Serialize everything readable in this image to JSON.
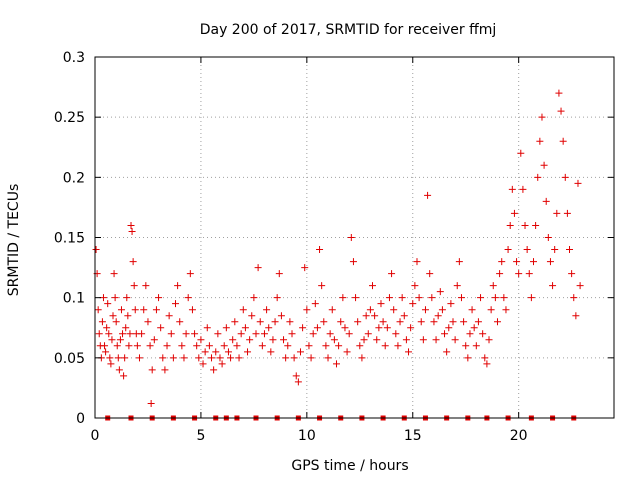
{
  "chart_data": {
    "type": "scatter",
    "title": "Day 200 of 2017, SRMTID for receiver ffmj",
    "xlabel": "GPS time / hours",
    "ylabel": "SRMTID / TECUs",
    "xlim": [
      0,
      24.5
    ],
    "ylim": [
      0,
      0.3
    ],
    "x_ticks": [
      0,
      5,
      10,
      15,
      20
    ],
    "x_tick_labels": [
      "0",
      "5",
      "10",
      "15",
      "20"
    ],
    "y_ticks": [
      0,
      0.05,
      0.1,
      0.15,
      0.2,
      0.25,
      0.3
    ],
    "y_tick_labels": [
      "0",
      "0.05",
      "0.1",
      "0.15",
      "0.2",
      "0.25",
      "0.3"
    ],
    "grid": true,
    "marker": "+",
    "color": "#e00000",
    "series": [
      {
        "name": "SRMTID",
        "points": [
          [
            0.05,
            0.14
          ],
          [
            0.1,
            0.12
          ],
          [
            0.15,
            0.09
          ],
          [
            0.2,
            0.07
          ],
          [
            0.25,
            0.06
          ],
          [
            0.3,
            0.05
          ],
          [
            0.35,
            0.08
          ],
          [
            0.4,
            0.1
          ],
          [
            0.45,
            0.06
          ],
          [
            0.5,
            0.055
          ],
          [
            0.55,
            0.075
          ],
          [
            0.6,
            0.095
          ],
          [
            0.65,
            0.07
          ],
          [
            0.7,
            0.05
          ],
          [
            0.75,
            0.045
          ],
          [
            0.8,
            0.065
          ],
          [
            0.85,
            0.085
          ],
          [
            0.9,
            0.12
          ],
          [
            0.95,
            0.1
          ],
          [
            1.0,
            0.08
          ],
          [
            1.05,
            0.06
          ],
          [
            1.1,
            0.05
          ],
          [
            1.15,
            0.04
          ],
          [
            1.2,
            0.065
          ],
          [
            1.25,
            0.09
          ],
          [
            1.3,
            0.07
          ],
          [
            1.35,
            0.035
          ],
          [
            1.4,
            0.05
          ],
          [
            1.45,
            0.075
          ],
          [
            1.5,
            0.1
          ],
          [
            1.55,
            0.085
          ],
          [
            1.6,
            0.06
          ],
          [
            1.65,
            0.07
          ],
          [
            1.7,
            0.16
          ],
          [
            1.75,
            0.155
          ],
          [
            1.8,
            0.13
          ],
          [
            1.85,
            0.11
          ],
          [
            1.9,
            0.09
          ],
          [
            1.95,
            0.07
          ],
          [
            2.0,
            0.06
          ],
          [
            2.1,
            0.05
          ],
          [
            2.2,
            0.07
          ],
          [
            2.3,
            0.09
          ],
          [
            2.4,
            0.11
          ],
          [
            2.5,
            0.08
          ],
          [
            2.6,
            0.06
          ],
          [
            2.65,
            0.012
          ],
          [
            2.7,
            0.04
          ],
          [
            2.8,
            0.065
          ],
          [
            2.9,
            0.09
          ],
          [
            3.0,
            0.1
          ],
          [
            3.1,
            0.075
          ],
          [
            3.2,
            0.05
          ],
          [
            3.3,
            0.04
          ],
          [
            3.4,
            0.06
          ],
          [
            3.5,
            0.085
          ],
          [
            3.6,
            0.07
          ],
          [
            3.7,
            0.05
          ],
          [
            3.8,
            0.095
          ],
          [
            3.9,
            0.11
          ],
          [
            4.0,
            0.08
          ],
          [
            4.1,
            0.06
          ],
          [
            4.2,
            0.05
          ],
          [
            4.3,
            0.07
          ],
          [
            4.4,
            0.1
          ],
          [
            4.5,
            0.12
          ],
          [
            4.6,
            0.09
          ],
          [
            4.7,
            0.07
          ],
          [
            4.8,
            0.06
          ],
          [
            4.9,
            0.05
          ],
          [
            5.0,
            0.065
          ],
          [
            5.1,
            0.045
          ],
          [
            5.2,
            0.055
          ],
          [
            5.3,
            0.075
          ],
          [
            5.4,
            0.06
          ],
          [
            5.5,
            0.05
          ],
          [
            5.6,
            0.04
          ],
          [
            5.7,
            0.055
          ],
          [
            5.8,
            0.07
          ],
          [
            5.9,
            0.05
          ],
          [
            6.0,
            0.045
          ],
          [
            6.1,
            0.06
          ],
          [
            6.2,
            0.075
          ],
          [
            6.3,
            0.055
          ],
          [
            6.4,
            0.05
          ],
          [
            6.5,
            0.065
          ],
          [
            6.6,
            0.08
          ],
          [
            6.7,
            0.06
          ],
          [
            6.8,
            0.05
          ],
          [
            6.9,
            0.07
          ],
          [
            7.0,
            0.09
          ],
          [
            7.1,
            0.075
          ],
          [
            7.2,
            0.055
          ],
          [
            7.3,
            0.065
          ],
          [
            7.4,
            0.085
          ],
          [
            7.5,
            0.1
          ],
          [
            7.6,
            0.07
          ],
          [
            7.7,
            0.125
          ],
          [
            7.8,
            0.08
          ],
          [
            7.9,
            0.06
          ],
          [
            8.0,
            0.07
          ],
          [
            8.1,
            0.09
          ],
          [
            8.2,
            0.075
          ],
          [
            8.3,
            0.055
          ],
          [
            8.4,
            0.065
          ],
          [
            8.5,
            0.08
          ],
          [
            8.6,
            0.1
          ],
          [
            8.7,
            0.12
          ],
          [
            8.8,
            0.085
          ],
          [
            8.9,
            0.065
          ],
          [
            9.0,
            0.05
          ],
          [
            9.1,
            0.06
          ],
          [
            9.2,
            0.08
          ],
          [
            9.3,
            0.07
          ],
          [
            9.4,
            0.05
          ],
          [
            9.5,
            0.035
          ],
          [
            9.6,
            0.03
          ],
          [
            9.7,
            0.055
          ],
          [
            9.8,
            0.075
          ],
          [
            9.9,
            0.125
          ],
          [
            10.0,
            0.09
          ],
          [
            10.1,
            0.06
          ],
          [
            10.2,
            0.05
          ],
          [
            10.3,
            0.07
          ],
          [
            10.4,
            0.095
          ],
          [
            10.5,
            0.075
          ],
          [
            10.6,
            0.14
          ],
          [
            10.7,
            0.11
          ],
          [
            10.8,
            0.08
          ],
          [
            10.9,
            0.06
          ],
          [
            11.0,
            0.05
          ],
          [
            11.1,
            0.07
          ],
          [
            11.2,
            0.09
          ],
          [
            11.3,
            0.065
          ],
          [
            11.4,
            0.045
          ],
          [
            11.5,
            0.06
          ],
          [
            11.6,
            0.08
          ],
          [
            11.7,
            0.1
          ],
          [
            11.8,
            0.075
          ],
          [
            11.9,
            0.055
          ],
          [
            12.0,
            0.07
          ],
          [
            12.1,
            0.15
          ],
          [
            12.2,
            0.13
          ],
          [
            12.3,
            0.1
          ],
          [
            12.4,
            0.08
          ],
          [
            12.5,
            0.06
          ],
          [
            12.6,
            0.05
          ],
          [
            12.7,
            0.065
          ],
          [
            12.8,
            0.085
          ],
          [
            12.9,
            0.07
          ],
          [
            13.0,
            0.09
          ],
          [
            13.1,
            0.11
          ],
          [
            13.2,
            0.085
          ],
          [
            13.3,
            0.065
          ],
          [
            13.4,
            0.075
          ],
          [
            13.5,
            0.095
          ],
          [
            13.6,
            0.08
          ],
          [
            13.7,
            0.06
          ],
          [
            13.8,
            0.075
          ],
          [
            13.9,
            0.1
          ],
          [
            14.0,
            0.12
          ],
          [
            14.1,
            0.09
          ],
          [
            14.2,
            0.07
          ],
          [
            14.3,
            0.06
          ],
          [
            14.4,
            0.08
          ],
          [
            14.5,
            0.1
          ],
          [
            14.6,
            0.085
          ],
          [
            14.7,
            0.065
          ],
          [
            14.8,
            0.055
          ],
          [
            14.9,
            0.075
          ],
          [
            15.0,
            0.095
          ],
          [
            15.1,
            0.11
          ],
          [
            15.2,
            0.13
          ],
          [
            15.3,
            0.1
          ],
          [
            15.4,
            0.08
          ],
          [
            15.5,
            0.065
          ],
          [
            15.6,
            0.09
          ],
          [
            15.7,
            0.185
          ],
          [
            15.8,
            0.12
          ],
          [
            15.9,
            0.1
          ],
          [
            16.0,
            0.08
          ],
          [
            16.1,
            0.065
          ],
          [
            16.2,
            0.085
          ],
          [
            16.3,
            0.105
          ],
          [
            16.4,
            0.09
          ],
          [
            16.5,
            0.07
          ],
          [
            16.6,
            0.055
          ],
          [
            16.7,
            0.075
          ],
          [
            16.8,
            0.095
          ],
          [
            16.9,
            0.08
          ],
          [
            17.0,
            0.065
          ],
          [
            17.1,
            0.11
          ],
          [
            17.2,
            0.13
          ],
          [
            17.3,
            0.1
          ],
          [
            17.4,
            0.08
          ],
          [
            17.5,
            0.06
          ],
          [
            17.6,
            0.05
          ],
          [
            17.7,
            0.07
          ],
          [
            17.8,
            0.09
          ],
          [
            17.9,
            0.075
          ],
          [
            18.0,
            0.06
          ],
          [
            18.1,
            0.08
          ],
          [
            18.2,
            0.1
          ],
          [
            18.3,
            0.07
          ],
          [
            18.4,
            0.05
          ],
          [
            18.5,
            0.045
          ],
          [
            18.6,
            0.065
          ],
          [
            18.7,
            0.09
          ],
          [
            18.8,
            0.11
          ],
          [
            18.9,
            0.1
          ],
          [
            19.0,
            0.08
          ],
          [
            19.1,
            0.12
          ],
          [
            19.2,
            0.13
          ],
          [
            19.3,
            0.1
          ],
          [
            19.4,
            0.09
          ],
          [
            19.5,
            0.14
          ],
          [
            19.6,
            0.16
          ],
          [
            19.7,
            0.19
          ],
          [
            19.8,
            0.17
          ],
          [
            19.9,
            0.13
          ],
          [
            20.0,
            0.12
          ],
          [
            20.1,
            0.22
          ],
          [
            20.2,
            0.19
          ],
          [
            20.3,
            0.16
          ],
          [
            20.4,
            0.14
          ],
          [
            20.5,
            0.12
          ],
          [
            20.6,
            0.1
          ],
          [
            20.7,
            0.13
          ],
          [
            20.8,
            0.16
          ],
          [
            20.9,
            0.2
          ],
          [
            21.0,
            0.23
          ],
          [
            21.1,
            0.25
          ],
          [
            21.2,
            0.21
          ],
          [
            21.3,
            0.18
          ],
          [
            21.4,
            0.15
          ],
          [
            21.5,
            0.13
          ],
          [
            21.6,
            0.11
          ],
          [
            21.7,
            0.14
          ],
          [
            21.8,
            0.17
          ],
          [
            21.9,
            0.27
          ],
          [
            22.0,
            0.255
          ],
          [
            22.1,
            0.23
          ],
          [
            22.2,
            0.2
          ],
          [
            22.3,
            0.17
          ],
          [
            22.4,
            0.14
          ],
          [
            22.5,
            0.12
          ],
          [
            22.6,
            0.1
          ],
          [
            22.7,
            0.085
          ],
          [
            22.8,
            0.195
          ],
          [
            22.9,
            0.11
          ]
        ]
      }
    ],
    "baseline_markers": [
      0.6,
      1.7,
      2.7,
      3.7,
      4.7,
      5.7,
      6.2,
      6.7,
      7.6,
      8.6,
      9.6,
      10.6,
      11.6,
      12.6,
      13.6,
      14.6,
      15.6,
      16.6,
      17.6,
      18.5,
      19.5,
      20.6,
      21.6,
      22.6
    ]
  }
}
